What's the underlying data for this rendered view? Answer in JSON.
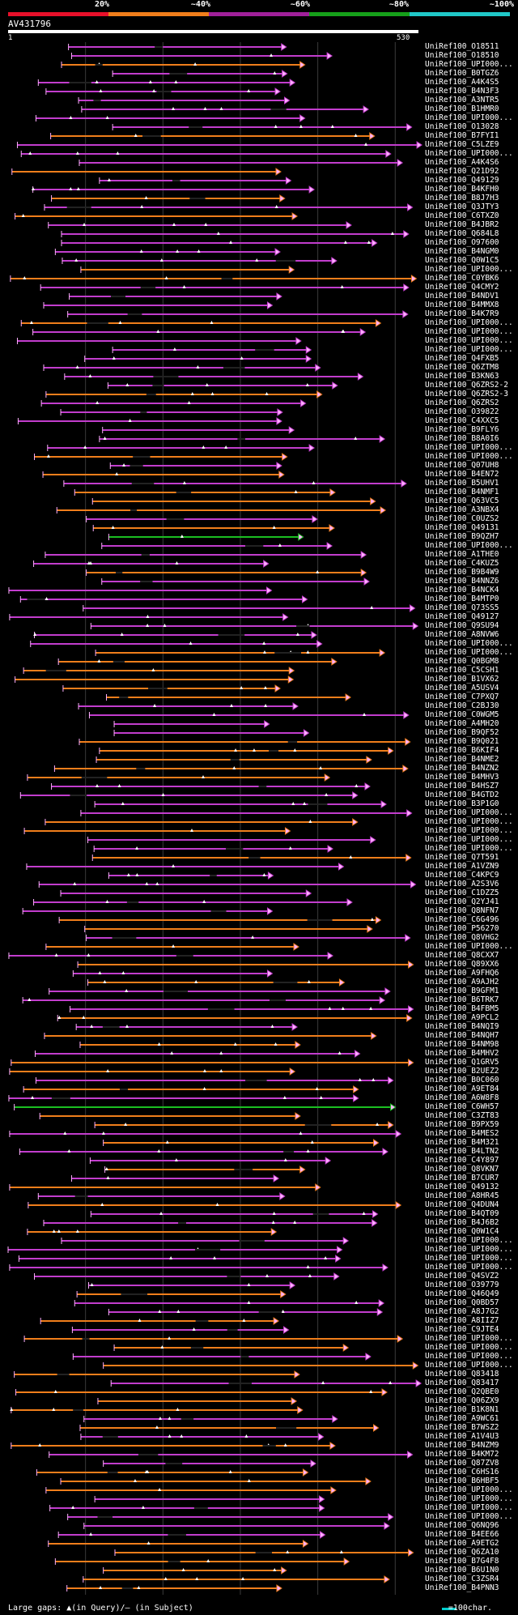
{
  "percent_scale": {
    "labels": [
      "20%",
      "~40%",
      "~60%",
      "~80%",
      "~100%"
    ],
    "colors": [
      "#e8102a",
      "#f07e1b",
      "#a0209a",
      "#16a01a",
      "#20c8c8"
    ]
  },
  "query": {
    "id": "AV431796",
    "start": "1",
    "end": "530"
  },
  "colors": {
    "orange": "#f07e1b",
    "purple": "#c23dcd",
    "green": "#1bbf22",
    "grid": "#3a3a3a",
    "cap": "#ffb0ff"
  },
  "chart_data": {
    "type": "blast-alignment-overview",
    "query_length": 530,
    "ticks": [
      100,
      200,
      300,
      400,
      500
    ],
    "subjects": [
      "UniRef100_O18511",
      "UniRef100_O18510",
      "UniRef100_UPI000...",
      "UniRef100_B0TGZ6",
      "UniRef100_A4K4S5",
      "UniRef100_B4N3F3",
      "UniRef100_A3NTR5",
      "UniRef100_B1HMR0",
      "UniRef100_UPI000...",
      "UniRef100_O13028",
      "UniRef100_B7FYI1",
      "UniRef100_C5LZE9",
      "UniRef100_UPI000...",
      "UniRef100_A4K4S6",
      "UniRef100_Q21D92",
      "UniRef100_Q49129",
      "UniRef100_B4KFH0",
      "UniRef100_B8J7H3",
      "UniRef100_Q3JTY3",
      "UniRef100_C6TXZ0",
      "UniRef100_B4JBR2",
      "UniRef100_Q684L8",
      "UniRef100_O97600",
      "UniRef100_B4NGM0",
      "UniRef100_Q0W1C5",
      "UniRef100_UPI000...",
      "UniRef100_C0YBK6",
      "UniRef100_Q4CMY2",
      "UniRef100_B4NDV1",
      "UniRef100_B4MMX8",
      "UniRef100_B4K7R9",
      "UniRef100_UPI000...",
      "UniRef100_UPI000...",
      "UniRef100_UPI000...",
      "UniRef100_UPI000...",
      "UniRef100_Q4FXB5",
      "UniRef100_Q6ZTM8",
      "UniRef100_B3KN63",
      "UniRef100_Q6ZRS2-2",
      "UniRef100_Q6ZRS2-3",
      "UniRef100_Q6ZRS2",
      "UniRef100_O39822",
      "UniRef100_C4XXC5",
      "UniRef100_B9FLY6",
      "UniRef100_B8A0I6",
      "UniRef100_UPI000...",
      "UniRef100_UPI000...",
      "UniRef100_Q07UH8",
      "UniRef100_B4EN72",
      "UniRef100_B5UHV1",
      "UniRef100_B4NMF1",
      "UniRef100_Q63VC5",
      "UniRef100_A3NBX4",
      "UniRef100_C0UZS2",
      "UniRef100_Q49131",
      "UniRef100_B9QZH7",
      "UniRef100_UPI000...",
      "UniRef100_A1THE0",
      "UniRef100_C4KUZ5",
      "UniRef100_B9B4W9",
      "UniRef100_B4NNZ6",
      "UniRef100_B4NCK4",
      "UniRef100_B4MTP0",
      "UniRef100_Q73SS5",
      "UniRef100_Q49127",
      "UniRef100_Q9SU94",
      "UniRef100_A8NVW6",
      "UniRef100_UPI000...",
      "UniRef100_UPI000...",
      "UniRef100_Q0BGM8",
      "UniRef100_C5CSH1",
      "UniRef100_B1VX62",
      "UniRef100_A5USV4",
      "UniRef100_C7PXQ7",
      "UniRef100_C2BJ30",
      "UniRef100_C0WGM5",
      "UniRef100_A4MH20",
      "UniRef100_B9QF52",
      "UniRef100_B9Q021",
      "UniRef100_B6KIF4",
      "UniRef100_B4NME2",
      "UniRef100_B4NZN2",
      "UniRef100_B4MHV3",
      "UniRef100_B4HSZ7",
      "UniRef100_B4GTD2",
      "UniRef100_B3P1G0",
      "UniRef100_UPI000...",
      "UniRef100_UPI000...",
      "UniRef100_UPI000...",
      "UniRef100_UPI000...",
      "UniRef100_UPI000...",
      "UniRef100_Q7T591",
      "UniRef100_A1VZN9",
      "UniRef100_C4KPC9",
      "UniRef100_A2S3V6",
      "UniRef100_C1DZZ5",
      "UniRef100_Q2YJ41",
      "UniRef100_Q8NFN7",
      "UniRef100_C6G496",
      "UniRef100_P56270",
      "UniRef100_Q8VHG2",
      "UniRef100_UPI000...",
      "UniRef100_Q8CXX7",
      "UniRef100_Q89XX6",
      "UniRef100_A9FHQ6",
      "UniRef100_A9AJH2",
      "UniRef100_B9GFM1",
      "UniRef100_B6TRK7",
      "UniRef100_B4FBM5",
      "UniRef100_A9PCL2",
      "UniRef100_B4NQI9",
      "UniRef100_B4NQH7",
      "UniRef100_B4NM98",
      "UniRef100_B4MHV2",
      "UniRef100_Q1GRV5",
      "UniRef100_B2UEZ2",
      "UniRef100_B0C060",
      "UniRef100_A9ET84",
      "UniRef100_A6W8F8",
      "UniRef100_C6WH57",
      "UniRef100_C3ZT83",
      "UniRef100_B9PX59",
      "UniRef100_B4MES2",
      "UniRef100_B4M321",
      "UniRef100_B4LTN2",
      "UniRef100_C4Y897",
      "UniRef100_Q8VKN7",
      "UniRef100_B7CUR7",
      "UniRef100_Q49132",
      "UniRef100_A8HR45",
      "UniRef100_Q4DUN4",
      "UniRef100_B4QT09",
      "UniRef100_B4J6B2",
      "UniRef100_Q0W1C4",
      "UniRef100_UPI000...",
      "UniRef100_UPI000...",
      "UniRef100_UPI000...",
      "UniRef100_UPI000...",
      "UniRef100_Q4SVZ2",
      "UniRef100_O39779",
      "UniRef100_Q46Q49",
      "UniRef100_Q0BD57",
      "UniRef100_A8J7G2",
      "UniRef100_A8IIZ7",
      "UniRef100_C9JTE4",
      "UniRef100_UPI000...",
      "UniRef100_UPI000...",
      "UniRef100_UPI000...",
      "UniRef100_UPI000...",
      "UniRef100_Q83418",
      "UniRef100_Q83417",
      "UniRef100_Q2QBE0",
      "UniRef100_Q06ZX9",
      "UniRef100_B1K8N1",
      "UniRef100_A9WC61",
      "UniRef100_B7WSZ2",
      "UniRef100_A1V4U3",
      "UniRef100_B4NZM9",
      "UniRef100_B4KM72",
      "UniRef100_Q87ZV8",
      "UniRef100_C6HS16",
      "UniRef100_B6HBF5",
      "UniRef100_UPI000...",
      "UniRef100_UPI000...",
      "UniRef100_UPI000...",
      "UniRef100_UPI000...",
      "UniRef100_Q6NQ96",
      "UniRef100_B4EE66",
      "UniRef100_A9ETG2",
      "UniRef100_Q6ZA10",
      "UniRef100_B7G4F8",
      "UniRef100_B6U1N0",
      "UniRef100_C3ZSR4",
      "UniRef100_B4PNN3"
    ]
  },
  "footer": {
    "left": "Large gaps: ▲(in Query)/— (in Subject)",
    "right": "=100char."
  }
}
